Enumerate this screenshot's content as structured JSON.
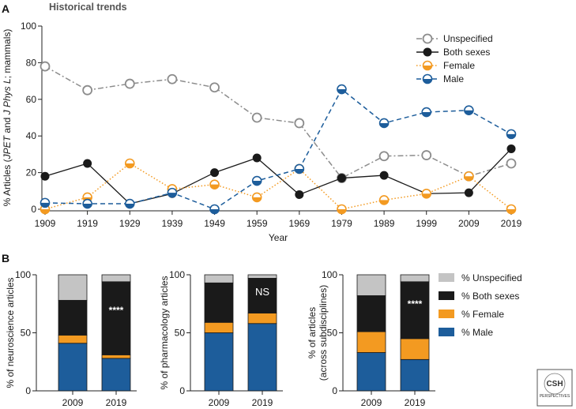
{
  "panel_a_label": "A",
  "panel_b_label": "B",
  "colors": {
    "unspecified": "#8c8c8c",
    "unspecified_fill": "#c4c4c4",
    "both": "#1a1a1a",
    "female": "#f39a21",
    "male": "#1d5d9b"
  },
  "logo": {
    "text_main": "CSH",
    "text_sub": "PERSPECTIVES",
    "icon": "csh-perspectives-logo"
  },
  "chart_data": [
    {
      "type": "line",
      "title": "Historical trends",
      "xlabel": "Year",
      "ylabel": "% Articles (JPET and J Phys L; mammals)",
      "ylabel_parts": [
        "% Articles (",
        "JPET",
        " and ",
        "J Phys L",
        "; mammals)"
      ],
      "x": [
        1909,
        1919,
        1929,
        1939,
        1949,
        1959,
        1969,
        1979,
        1989,
        1999,
        2009,
        2019
      ],
      "x_tick_labels": [
        "1909",
        "1919",
        "1929",
        "1939",
        "1949",
        "1959",
        "1969",
        "1979",
        "1989",
        "1999",
        "2009",
        "2019"
      ],
      "ylim": [
        0,
        100
      ],
      "y_ticks": [
        0,
        20,
        40,
        60,
        80,
        100
      ],
      "legend_position": "top-right",
      "series": [
        {
          "name": "Unspecified",
          "key": "unspecified",
          "marker": "open-circle",
          "line": "dash-dot",
          "values": [
            78,
            65,
            68.5,
            71,
            66.5,
            50,
            47,
            17,
            29,
            29.5,
            18,
            25
          ]
        },
        {
          "name": "Both sexes",
          "key": "both",
          "marker": "filled-circle",
          "line": "solid",
          "values": [
            18,
            25,
            3,
            8.5,
            20,
            28,
            8,
            17,
            18.5,
            8.5,
            9,
            33
          ]
        },
        {
          "name": "Female",
          "key": "female",
          "marker": "half-circle",
          "line": "dotted",
          "values": [
            0,
            6.5,
            25,
            11,
            13.5,
            6.5,
            22,
            0,
            5,
            8.5,
            18,
            0
          ]
        },
        {
          "name": "Male",
          "key": "male",
          "marker": "half-circle",
          "line": "dashed",
          "values": [
            3.5,
            3,
            3,
            9,
            0,
            15.5,
            22,
            65.5,
            47,
            53,
            54,
            41
          ]
        }
      ]
    },
    {
      "type": "bar",
      "stacked": true,
      "ylabel": "% of neuroscience articles",
      "categories": [
        "2009",
        "2019"
      ],
      "ylim": [
        0,
        100
      ],
      "y_ticks": [
        0,
        50,
        100
      ],
      "series": [
        {
          "name": "% Male",
          "key": "male",
          "values": [
            41,
            28
          ]
        },
        {
          "name": "% Female",
          "key": "female",
          "values": [
            7,
            3
          ]
        },
        {
          "name": "% Both sexes",
          "key": "both",
          "values": [
            30,
            63
          ]
        },
        {
          "name": "% Unspecified",
          "key": "unspecified_fill",
          "values": [
            22,
            6
          ]
        }
      ],
      "annotations": [
        {
          "category": "2019",
          "text": "****"
        }
      ]
    },
    {
      "type": "bar",
      "stacked": true,
      "ylabel": "% of pharmacology articles",
      "categories": [
        "2009",
        "2019"
      ],
      "ylim": [
        0,
        100
      ],
      "y_ticks": [
        0,
        50,
        100
      ],
      "series": [
        {
          "name": "% Male",
          "key": "male",
          "values": [
            50,
            58
          ]
        },
        {
          "name": "% Female",
          "key": "female",
          "values": [
            9,
            9
          ]
        },
        {
          "name": "% Both sexes",
          "key": "both",
          "values": [
            34,
            30
          ]
        },
        {
          "name": "% Unspecified",
          "key": "unspecified_fill",
          "values": [
            7,
            3
          ]
        }
      ],
      "annotations": [
        {
          "category": "2019",
          "text": "NS"
        }
      ]
    },
    {
      "type": "bar",
      "stacked": true,
      "ylabel": "% of articles (across subdisciplines)",
      "ylabel_lines": [
        "% of articles",
        "(across subdisciplines)"
      ],
      "categories": [
        "2009",
        "2019"
      ],
      "ylim": [
        0,
        100
      ],
      "y_ticks": [
        0,
        50,
        100
      ],
      "series": [
        {
          "name": "% Male",
          "key": "male",
          "values": [
            33,
            27
          ]
        },
        {
          "name": "% Female",
          "key": "female",
          "values": [
            18,
            18
          ]
        },
        {
          "name": "% Both sexes",
          "key": "both",
          "values": [
            31,
            49
          ]
        },
        {
          "name": "% Unspecified",
          "key": "unspecified_fill",
          "values": [
            18,
            6
          ]
        }
      ],
      "annotations": [
        {
          "category": "2019",
          "text": "****"
        }
      ],
      "legend": [
        "% Unspecified",
        "% Both sexes",
        "% Female",
        "% Male"
      ],
      "legend_keys": [
        "unspecified_fill",
        "both",
        "female",
        "male"
      ],
      "legend_position": "right"
    }
  ]
}
